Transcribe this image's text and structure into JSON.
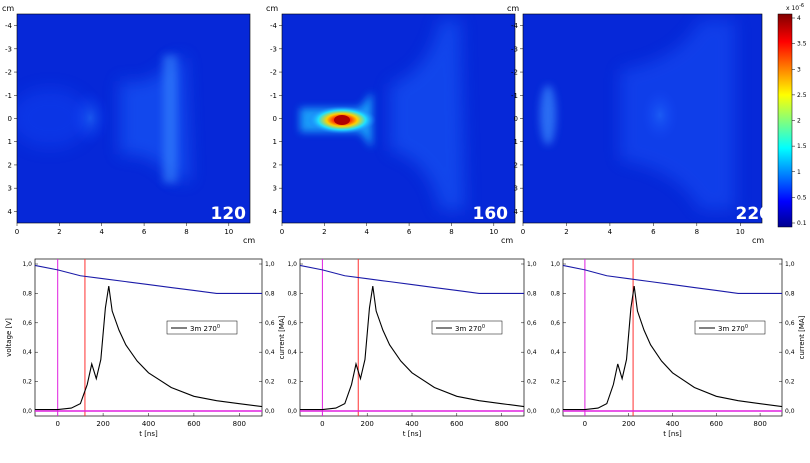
{
  "colorbar": {
    "ticks": [
      "4",
      "3.5",
      "3",
      "2.5",
      "2",
      "1.5",
      "1",
      "0.5",
      "0.1"
    ],
    "exponent": "x 10",
    "exponent_power": "-6"
  },
  "chart_data": [
    {
      "type": "heatmap",
      "label": "120",
      "axis_unit_y": "cm",
      "axis_unit_x": "cm",
      "x_ticks": [
        "0",
        "2",
        "4",
        "6",
        "8",
        "10"
      ],
      "y_ticks": [
        "-4",
        "-3",
        "-2",
        "-1",
        "0",
        "1",
        "2",
        "3",
        "4"
      ],
      "xlim": [
        0,
        11
      ],
      "ylim": [
        -4.5,
        4.5
      ],
      "hotspots": [
        {
          "x": 3.6,
          "y": 0,
          "intensity": 0.25
        },
        {
          "x": 7.5,
          "y": 0,
          "intensity": 0.22
        }
      ]
    },
    {
      "type": "heatmap",
      "label": "160",
      "axis_unit_y": "cm",
      "axis_unit_x": "cm",
      "x_ticks": [
        "0",
        "2",
        "4",
        "6",
        "8",
        "10"
      ],
      "y_ticks": [
        "-4",
        "-3",
        "-2",
        "-1",
        "0",
        "1",
        "2",
        "3",
        "4"
      ],
      "xlim": [
        0,
        11
      ],
      "ylim": [
        -4.5,
        4.5
      ],
      "hotspots": [
        {
          "x": 3.4,
          "y": 0,
          "intensity": 1.0
        },
        {
          "x": 6.5,
          "y": 0,
          "intensity": 0.2
        }
      ]
    },
    {
      "type": "heatmap",
      "label": "220",
      "axis_unit_y": "cm",
      "axis_unit_x": "cm",
      "x_ticks": [
        "0",
        "2",
        "4",
        "6",
        "8",
        "10"
      ],
      "y_ticks": [
        "-4",
        "-3",
        "-2",
        "-1",
        "0",
        "1",
        "2",
        "3",
        "4"
      ],
      "xlim": [
        0,
        11
      ],
      "ylim": [
        -4.5,
        4.5
      ],
      "hotspots": [
        {
          "x": 1.0,
          "y": 0,
          "intensity": 0.2
        },
        {
          "x": 6.0,
          "y": 0,
          "intensity": 0.22
        }
      ]
    },
    {
      "type": "line",
      "xlabel": "t [ns]",
      "ylabel_left": "voltage [V]",
      "ylabel_right": "current [MA]",
      "legend": "3m 270",
      "legend_sup": "0",
      "x_ticks": [
        "0",
        "200",
        "400",
        "600",
        "800"
      ],
      "y_ticks": [
        "0,0",
        "0,2",
        "0,4",
        "0,6",
        "0,8",
        "1,0"
      ],
      "xlim": [
        -100,
        900
      ],
      "ylim": [
        0,
        1
      ],
      "marker_magenta_t": 0,
      "marker_red_t": 120,
      "series": [
        {
          "color": "#1a1aa8",
          "x": [
            -100,
            0,
            100,
            200,
            300,
            400,
            500,
            600,
            700,
            800,
            900
          ],
          "y": [
            0.99,
            0.96,
            0.92,
            0.9,
            0.88,
            0.86,
            0.84,
            0.82,
            0.8,
            0.8,
            0.8
          ]
        },
        {
          "color": "#000000",
          "x": [
            -100,
            0,
            60,
            100,
            130,
            150,
            170,
            190,
            210,
            225,
            240,
            270,
            300,
            350,
            400,
            500,
            600,
            700,
            800,
            900
          ],
          "y": [
            0.01,
            0.01,
            0.02,
            0.05,
            0.18,
            0.32,
            0.22,
            0.35,
            0.7,
            0.85,
            0.68,
            0.55,
            0.45,
            0.34,
            0.26,
            0.16,
            0.1,
            0.07,
            0.05,
            0.03
          ]
        },
        {
          "color": "#e020e0",
          "x": [
            -100,
            900
          ],
          "y": [
            0.0,
            0.0
          ]
        }
      ]
    },
    {
      "type": "line",
      "xlabel": "t [ns]",
      "legend": "3m 270",
      "legend_sup": "0",
      "x_ticks": [
        "0",
        "200",
        "400",
        "600",
        "800"
      ],
      "y_ticks": [
        "0,0",
        "0,2",
        "0,4",
        "0,6",
        "0,8",
        "1,0"
      ],
      "xlim": [
        -100,
        900
      ],
      "ylim": [
        0,
        1
      ],
      "marker_magenta_t": 0,
      "marker_red_t": 160,
      "series": [
        {
          "color": "#1a1aa8",
          "x": [
            -100,
            0,
            100,
            200,
            300,
            400,
            500,
            600,
            700,
            800,
            900
          ],
          "y": [
            0.99,
            0.96,
            0.92,
            0.9,
            0.88,
            0.86,
            0.84,
            0.82,
            0.8,
            0.8,
            0.8
          ]
        },
        {
          "color": "#000000",
          "x": [
            -100,
            0,
            60,
            100,
            130,
            150,
            170,
            190,
            210,
            225,
            240,
            270,
            300,
            350,
            400,
            500,
            600,
            700,
            800,
            900
          ],
          "y": [
            0.01,
            0.01,
            0.02,
            0.05,
            0.18,
            0.32,
            0.22,
            0.35,
            0.7,
            0.85,
            0.68,
            0.55,
            0.45,
            0.34,
            0.26,
            0.16,
            0.1,
            0.07,
            0.05,
            0.03
          ]
        },
        {
          "color": "#e020e0",
          "x": [
            -100,
            900
          ],
          "y": [
            0.0,
            0.0
          ]
        }
      ]
    },
    {
      "type": "line",
      "xlabel": "t [ns]",
      "ylabel_right": "current [MA]",
      "legend": "3m 270",
      "legend_sup": "0",
      "x_ticks": [
        "0",
        "200",
        "400",
        "600",
        "800"
      ],
      "y_ticks": [
        "0,0",
        "0,2",
        "0,4",
        "0,6",
        "0,8",
        "1,0"
      ],
      "xlim": [
        -100,
        900
      ],
      "ylim": [
        0,
        1
      ],
      "marker_magenta_t": 0,
      "marker_red_t": 220,
      "series": [
        {
          "color": "#1a1aa8",
          "x": [
            -100,
            0,
            100,
            200,
            300,
            400,
            500,
            600,
            700,
            800,
            900
          ],
          "y": [
            0.99,
            0.96,
            0.92,
            0.9,
            0.88,
            0.86,
            0.84,
            0.82,
            0.8,
            0.8,
            0.8
          ]
        },
        {
          "color": "#000000",
          "x": [
            -100,
            0,
            60,
            100,
            130,
            150,
            170,
            190,
            210,
            225,
            240,
            270,
            300,
            350,
            400,
            500,
            600,
            700,
            800,
            900
          ],
          "y": [
            0.01,
            0.01,
            0.02,
            0.05,
            0.18,
            0.32,
            0.22,
            0.35,
            0.7,
            0.85,
            0.68,
            0.55,
            0.45,
            0.34,
            0.26,
            0.16,
            0.1,
            0.07,
            0.05,
            0.03
          ]
        },
        {
          "color": "#e020e0",
          "x": [
            -100,
            900
          ],
          "y": [
            0.0,
            0.0
          ]
        }
      ]
    }
  ]
}
